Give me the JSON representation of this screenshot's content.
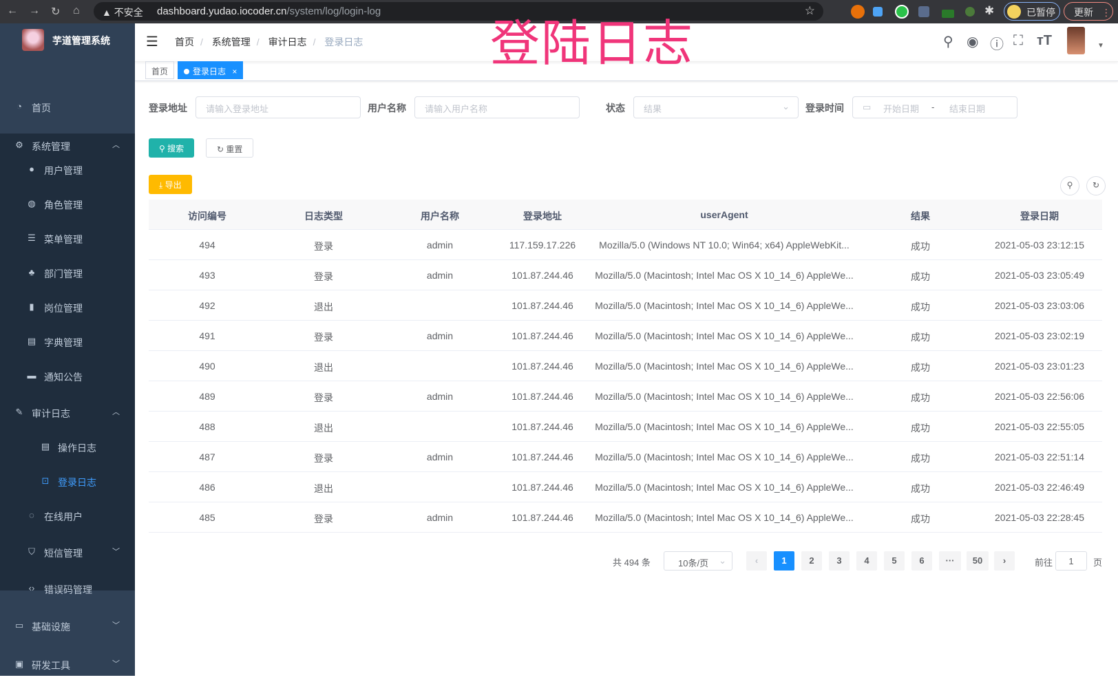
{
  "browser": {
    "insecure": "不安全",
    "host": "dashboard.yudao.iocoder.cn",
    "path": "/system/log/login-log",
    "paused": "已暂停",
    "update": "更新"
  },
  "overlay_title": "登陆日志",
  "sidebar": {
    "app_title": "芋道管理系统",
    "items": [
      {
        "label": "首页",
        "icon": "dashboard-icon"
      },
      {
        "label": "系统管理",
        "icon": "gear-icon",
        "expanded": true
      },
      {
        "label": "用户管理",
        "icon": "user-icon"
      },
      {
        "label": "角色管理",
        "icon": "role-icon"
      },
      {
        "label": "菜单管理",
        "icon": "menu-icon"
      },
      {
        "label": "部门管理",
        "icon": "tree-icon"
      },
      {
        "label": "岗位管理",
        "icon": "post-icon"
      },
      {
        "label": "字典管理",
        "icon": "dict-icon"
      },
      {
        "label": "通知公告",
        "icon": "message-icon"
      },
      {
        "label": "审计日志",
        "icon": "log-icon",
        "expanded": true
      },
      {
        "label": "操作日志",
        "icon": "form-icon"
      },
      {
        "label": "登录日志",
        "icon": "logininfor-icon",
        "active": true
      },
      {
        "label": "在线用户",
        "icon": "online-icon"
      },
      {
        "label": "短信管理",
        "icon": "shield-icon"
      },
      {
        "label": "错误码管理",
        "icon": "code-icon"
      },
      {
        "label": "基础设施",
        "icon": "monitor-icon"
      },
      {
        "label": "研发工具",
        "icon": "tool-icon"
      }
    ]
  },
  "breadcrumb": [
    "首页",
    "系统管理",
    "审计日志",
    "登录日志"
  ],
  "tags": [
    {
      "label": "首页"
    },
    {
      "label": "登录日志",
      "active": true
    }
  ],
  "filters": {
    "address_label": "登录地址",
    "address_placeholder": "请输入登录地址",
    "username_label": "用户名称",
    "username_placeholder": "请输入用户名称",
    "status_label": "状态",
    "status_placeholder": "结果",
    "time_label": "登录时间",
    "start_placeholder": "开始日期",
    "range_sep": "-",
    "end_placeholder": "结束日期"
  },
  "buttons": {
    "search": "搜索",
    "reset": "重置",
    "export": "导出"
  },
  "table": {
    "columns": [
      "访问编号",
      "日志类型",
      "用户名称",
      "登录地址",
      "userAgent",
      "结果",
      "登录日期"
    ],
    "rows": [
      [
        "494",
        "登录",
        "admin",
        "117.159.17.226",
        "Mozilla/5.0 (Windows NT 10.0; Win64; x64) AppleWebKit...",
        "成功",
        "2021-05-03 23:12:15"
      ],
      [
        "493",
        "登录",
        "admin",
        "101.87.244.46",
        "Mozilla/5.0 (Macintosh; Intel Mac OS X 10_14_6) AppleWe...",
        "成功",
        "2021-05-03 23:05:49"
      ],
      [
        "492",
        "退出",
        "",
        "101.87.244.46",
        "Mozilla/5.0 (Macintosh; Intel Mac OS X 10_14_6) AppleWe...",
        "成功",
        "2021-05-03 23:03:06"
      ],
      [
        "491",
        "登录",
        "admin",
        "101.87.244.46",
        "Mozilla/5.0 (Macintosh; Intel Mac OS X 10_14_6) AppleWe...",
        "成功",
        "2021-05-03 23:02:19"
      ],
      [
        "490",
        "退出",
        "",
        "101.87.244.46",
        "Mozilla/5.0 (Macintosh; Intel Mac OS X 10_14_6) AppleWe...",
        "成功",
        "2021-05-03 23:01:23"
      ],
      [
        "489",
        "登录",
        "admin",
        "101.87.244.46",
        "Mozilla/5.0 (Macintosh; Intel Mac OS X 10_14_6) AppleWe...",
        "成功",
        "2021-05-03 22:56:06"
      ],
      [
        "488",
        "退出",
        "",
        "101.87.244.46",
        "Mozilla/5.0 (Macintosh; Intel Mac OS X 10_14_6) AppleWe...",
        "成功",
        "2021-05-03 22:55:05"
      ],
      [
        "487",
        "登录",
        "admin",
        "101.87.244.46",
        "Mozilla/5.0 (Macintosh; Intel Mac OS X 10_14_6) AppleWe...",
        "成功",
        "2021-05-03 22:51:14"
      ],
      [
        "486",
        "退出",
        "",
        "101.87.244.46",
        "Mozilla/5.0 (Macintosh; Intel Mac OS X 10_14_6) AppleWe...",
        "成功",
        "2021-05-03 22:46:49"
      ],
      [
        "485",
        "登录",
        "admin",
        "101.87.244.46",
        "Mozilla/5.0 (Macintosh; Intel Mac OS X 10_14_6) AppleWe...",
        "成功",
        "2021-05-03 22:28:45"
      ]
    ]
  },
  "pagination": {
    "total": "共 494 条",
    "page_size": "10条/页",
    "pages": [
      "1",
      "2",
      "3",
      "4",
      "5",
      "6",
      "···",
      "50"
    ],
    "current": "1",
    "goto_label": "前往",
    "goto_value": "1",
    "goto_suffix": "页"
  },
  "colors": {
    "sidebar": "#304156",
    "primary": "#1890ff",
    "search": "#13ce66",
    "export": "#ffba00",
    "overlay": "#f0357a"
  }
}
